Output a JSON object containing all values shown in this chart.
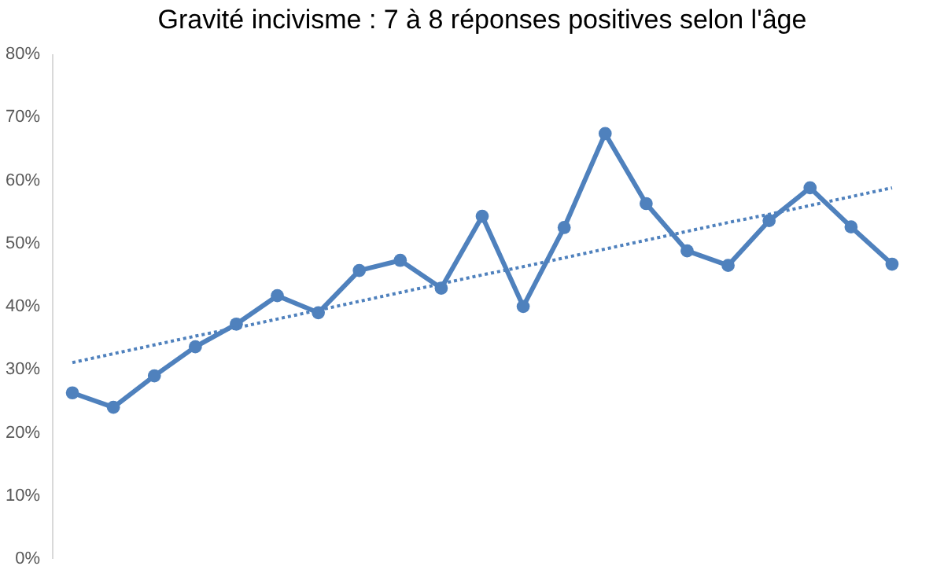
{
  "chart_data": {
    "type": "line",
    "title": "Gravité incivisme : 7 à 8 réponses positives selon l'âge",
    "categories": [
      null,
      null,
      null,
      null,
      null,
      null,
      null,
      null,
      null,
      null,
      null,
      null,
      null,
      null,
      null,
      null,
      null,
      null,
      null,
      null,
      null
    ],
    "series": [
      {
        "color": "#4f81bd",
        "marker": "circle",
        "line_style": "solid",
        "values": [
          26.2,
          23.9,
          28.9,
          33.5,
          37.1,
          41.6,
          38.9,
          45.6,
          47.2,
          42.8,
          54.2,
          39.9,
          52.4,
          67.3,
          56.2,
          48.7,
          46.4,
          53.5,
          58.7,
          52.5,
          46.6
        ]
      },
      {
        "color": "#4f81bd",
        "marker": "none",
        "line_style": "dotted",
        "values": [
          31.0,
          32.4,
          33.8,
          35.2,
          36.5,
          37.9,
          39.3,
          40.7,
          42.1,
          43.5,
          44.9,
          46.2,
          47.6,
          49.0,
          50.4,
          51.8,
          53.2,
          54.5,
          55.9,
          57.3,
          58.7
        ]
      }
    ],
    "ylim": [
      0,
      80
    ],
    "yticks": [
      {
        "value": 0,
        "label": "0%"
      },
      {
        "value": 10,
        "label": "10%"
      },
      {
        "value": 20,
        "label": "20%"
      },
      {
        "value": 30,
        "label": "30%"
      },
      {
        "value": 40,
        "label": "40%"
      },
      {
        "value": 50,
        "label": "50%"
      },
      {
        "value": 60,
        "label": "60%"
      },
      {
        "value": 70,
        "label": "70%"
      },
      {
        "value": 80,
        "label": "80%"
      }
    ],
    "tick_labels": "y",
    "grid": false
  }
}
